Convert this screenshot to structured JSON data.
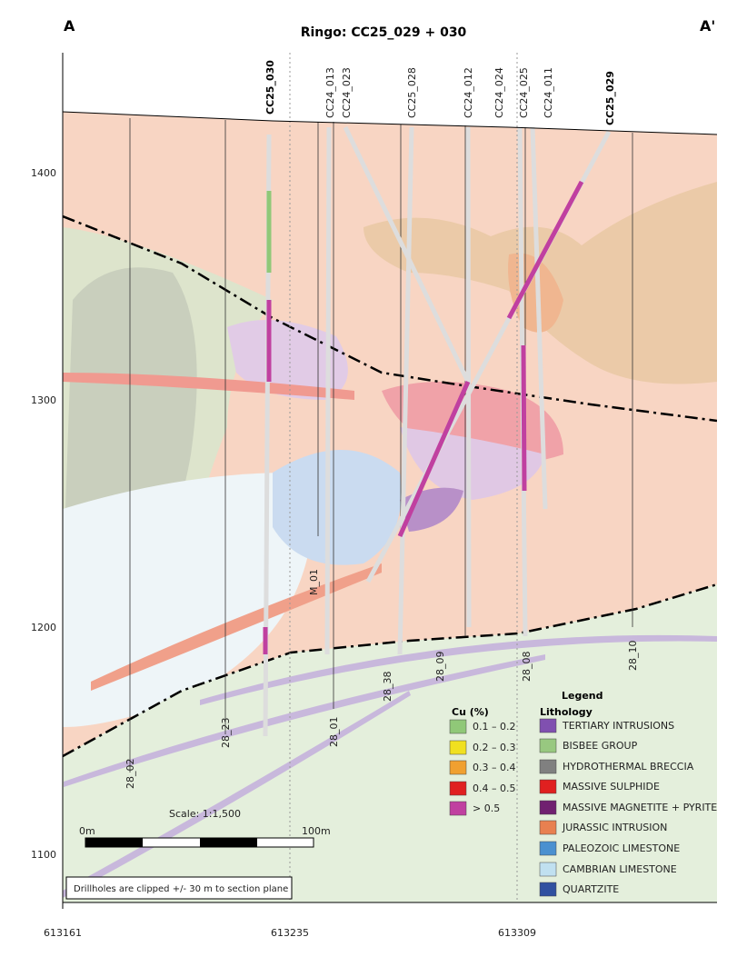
{
  "section_labels": {
    "left": "A",
    "right": "A'"
  },
  "title": "Ringo:  CC25_029 + 030",
  "y_axis_labels": [
    "1400",
    "1300",
    "1200",
    "1100"
  ],
  "x_axis_labels": [
    "613161",
    "613235",
    "613309"
  ],
  "drillholes": [
    "CC25_030",
    "CC24_013",
    "CC24_023",
    "CC25_028",
    "CC24_012",
    "CC24_024",
    "CC24_025",
    "CC24_011",
    "CC25_029"
  ],
  "grid_lines": [
    "28_02",
    "28_23",
    "M_01",
    "28_01",
    "28_38",
    "28_09",
    "28_08",
    "28_10"
  ],
  "legend": {
    "title": "Legend",
    "cu": {
      "title": "Cu (%)",
      "items": [
        "0.1 – 0.2",
        "0.2 – 0.3",
        "0.3 – 0.4",
        "0.4 – 0.5",
        "> 0.5"
      ]
    },
    "lithology": {
      "title": "Lithology",
      "items": [
        "TERTIARY INTRUSIONS",
        "BISBEE GROUP",
        "HYDROTHERMAL BRECCIA",
        "MASSIVE SULPHIDE",
        "MASSIVE MAGNETITE + PYRITE",
        "JURASSIC INTRUSION",
        "PALEOZOIC LIMESTONE",
        "CAMBRIAN LIMESTONE",
        "QUARTZITE"
      ]
    }
  },
  "scale": {
    "title": "Scale: 1:1,500",
    "start": "0m",
    "end": "100m"
  },
  "note": "Drillholes are clipped +/- 30 m to section plane"
}
